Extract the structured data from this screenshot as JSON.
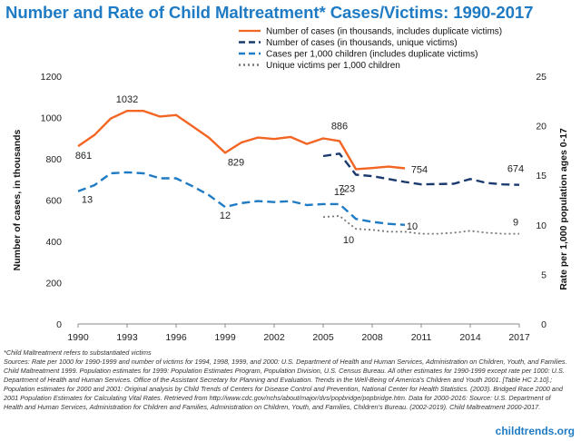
{
  "title": "Number and Rate of Child Maltreatment* Cases/Victims: 1990-2017",
  "chart_data": {
    "type": "line",
    "x": [
      1990,
      1991,
      1992,
      1993,
      1994,
      1995,
      1996,
      1997,
      1998,
      1999,
      2000,
      2001,
      2002,
      2003,
      2004,
      2005,
      2006,
      2007,
      2008,
      2009,
      2010,
      2011,
      2012,
      2013,
      2014,
      2015,
      2016,
      2017
    ],
    "x_ticks": [
      1990,
      1993,
      1996,
      1999,
      2002,
      2005,
      2008,
      2011,
      2014,
      2017
    ],
    "ylabel": "Number of cases, in thousands",
    "ylim": [
      0,
      1200
    ],
    "y_ticks": [
      0,
      200,
      400,
      600,
      800,
      1000,
      1200
    ],
    "y2label": "Rate per 1,000 population ages 0-17",
    "y2lim": [
      0,
      25
    ],
    "y2_ticks": [
      0,
      5,
      10,
      15,
      20,
      25
    ],
    "grid": false,
    "legend_position": "top-right",
    "series": [
      {
        "name": "Number of cases (in thousands, includes duplicate victims)",
        "axis": "left",
        "color": "#f26522",
        "style": "solid",
        "values": [
          861,
          915,
          995,
          1032,
          1032,
          1005,
          1012,
          958,
          903,
          829,
          879,
          903,
          896,
          906,
          872,
          899,
          886,
          750,
          755,
          762,
          754,
          null,
          null,
          null,
          null,
          null,
          null,
          null
        ]
      },
      {
        "name": "Number of cases (in thousands, unique victims)",
        "axis": "left",
        "color": "#1a3a6e",
        "style": "dash",
        "values": [
          null,
          null,
          null,
          null,
          null,
          null,
          null,
          null,
          null,
          null,
          null,
          null,
          null,
          null,
          null,
          813,
          825,
          723,
          716,
          702,
          688,
          676,
          678,
          679,
          702,
          683,
          676,
          674
        ]
      },
      {
        "name": "Cases per 1,000 children (includes duplicate victims)",
        "axis": "right",
        "color": "#1f7bc4",
        "style": "dash",
        "values": [
          13.4,
          14.0,
          15.2,
          15.3,
          15.2,
          14.7,
          14.7,
          13.9,
          13.0,
          11.8,
          12.2,
          12.4,
          12.3,
          12.4,
          12.0,
          12.1,
          12.1,
          10.6,
          10.3,
          10.1,
          10.0,
          null,
          null,
          null,
          null,
          null,
          null,
          null
        ]
      },
      {
        "name": "Unique victims per 1,000 children",
        "axis": "right",
        "color": "#777777",
        "style": "dot",
        "values": [
          null,
          null,
          null,
          null,
          null,
          null,
          null,
          null,
          null,
          null,
          null,
          null,
          null,
          null,
          null,
          10.8,
          10.9,
          9.6,
          9.5,
          9.3,
          9.3,
          9.1,
          9.1,
          9.2,
          9.4,
          9.2,
          9.1,
          9.1
        ]
      }
    ],
    "annotations": [
      {
        "text": "861",
        "x": 1990,
        "series": 0
      },
      {
        "text": "1032",
        "x": 1993,
        "series": 0
      },
      {
        "text": "829",
        "x": 1999,
        "series": 0
      },
      {
        "text": "886",
        "x": 2006,
        "series": 0
      },
      {
        "text": "754",
        "x": 2010,
        "series": 0
      },
      {
        "text": "723",
        "x": 2007,
        "series": 1
      },
      {
        "text": "674",
        "x": 2017,
        "series": 1
      },
      {
        "text": "13",
        "x": 1990,
        "series": 2
      },
      {
        "text": "12",
        "x": 1999,
        "series": 2
      },
      {
        "text": "12",
        "x": 2006,
        "series": 2
      },
      {
        "text": "10",
        "x": 2010,
        "series": 2
      },
      {
        "text": "10",
        "x": 2007,
        "series": 3
      },
      {
        "text": "9",
        "x": 2017,
        "series": 3
      }
    ]
  },
  "footnote": "*Child Maltreatment refers to substantiated victims",
  "sources": [
    "Sources: Rate per 1000 for 1990-1999 and number of victims for 1994, 1998, 1999, and 2000: U.S. Department of Health and Human Services, Administration on Children, Youth, and Families.",
    "Child Maltreatment 1999. Population estimates for 1999: Population Estimates Program, Population Division, U.S. Census Bureau.  All other estimates for 1990-1999 except rate per 1000: U.S.",
    "Department of Health and Human Services. Office of the Assistant Secretary for Planning and Evaluation. Trends in the Well-Being of America's Children and Youth 2001. [Table HC 2.10].;",
    "Population estimates for 2000 and 2001: Original analysis by Child Trends of Centers for Disease Control and Prevention, National Center for Health Statistics. (2003). Bridged Race 2000 and",
    "2001 Population Estimates for Calculating Vital Rates. Retrieved from http://www.cdc.gov/nchs/about/major/dvs/popbridge/popbridge.htm.   Data for 2000-2016:  Source: U.S. Department of",
    "Health and Human Services, Administration for Children and Families, Administration on Children, Youth, and Families, Children's Bureau. (2002-2019). Child Maltreatment 2000-2017."
  ],
  "brand": "childtrends.org"
}
